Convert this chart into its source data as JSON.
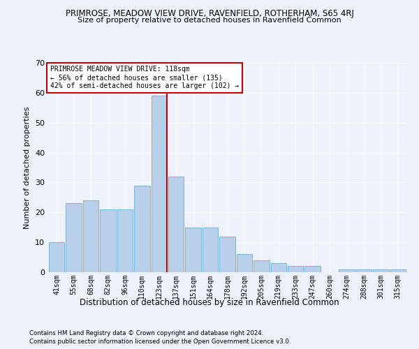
{
  "title1": "PRIMROSE, MEADOW VIEW DRIVE, RAVENFIELD, ROTHERHAM, S65 4RJ",
  "title2": "Size of property relative to detached houses in Ravenfield Common",
  "xlabel": "Distribution of detached houses by size in Ravenfield Common",
  "ylabel": "Number of detached properties",
  "footer1": "Contains HM Land Registry data © Crown copyright and database right 2024.",
  "footer2": "Contains public sector information licensed under the Open Government Licence v3.0.",
  "annotation_line1": "PRIMROSE MEADOW VIEW DRIVE: 118sqm",
  "annotation_line2": "← 56% of detached houses are smaller (135)",
  "annotation_line3": "42% of semi-detached houses are larger (102) →",
  "bar_color": "#b8d0ea",
  "bar_edge_color": "#6aaed6",
  "vline_color": "#cc0000",
  "annotation_box_color": "#ffffff",
  "annotation_box_edge_color": "#cc0000",
  "background_color": "#eef2fb",
  "grid_color": "#ffffff",
  "categories": [
    "41sqm",
    "55sqm",
    "68sqm",
    "82sqm",
    "96sqm",
    "110sqm",
    "123sqm",
    "137sqm",
    "151sqm",
    "164sqm",
    "178sqm",
    "192sqm",
    "205sqm",
    "219sqm",
    "233sqm",
    "247sqm",
    "260sqm",
    "274sqm",
    "288sqm",
    "301sqm",
    "315sqm"
  ],
  "values": [
    10,
    23,
    24,
    21,
    21,
    29,
    59,
    32,
    15,
    15,
    12,
    6,
    4,
    3,
    2,
    2,
    0,
    1,
    1,
    1,
    1
  ],
  "vline_index": 6,
  "ylim": [
    0,
    70
  ],
  "yticks": [
    0,
    10,
    20,
    30,
    40,
    50,
    60,
    70
  ]
}
